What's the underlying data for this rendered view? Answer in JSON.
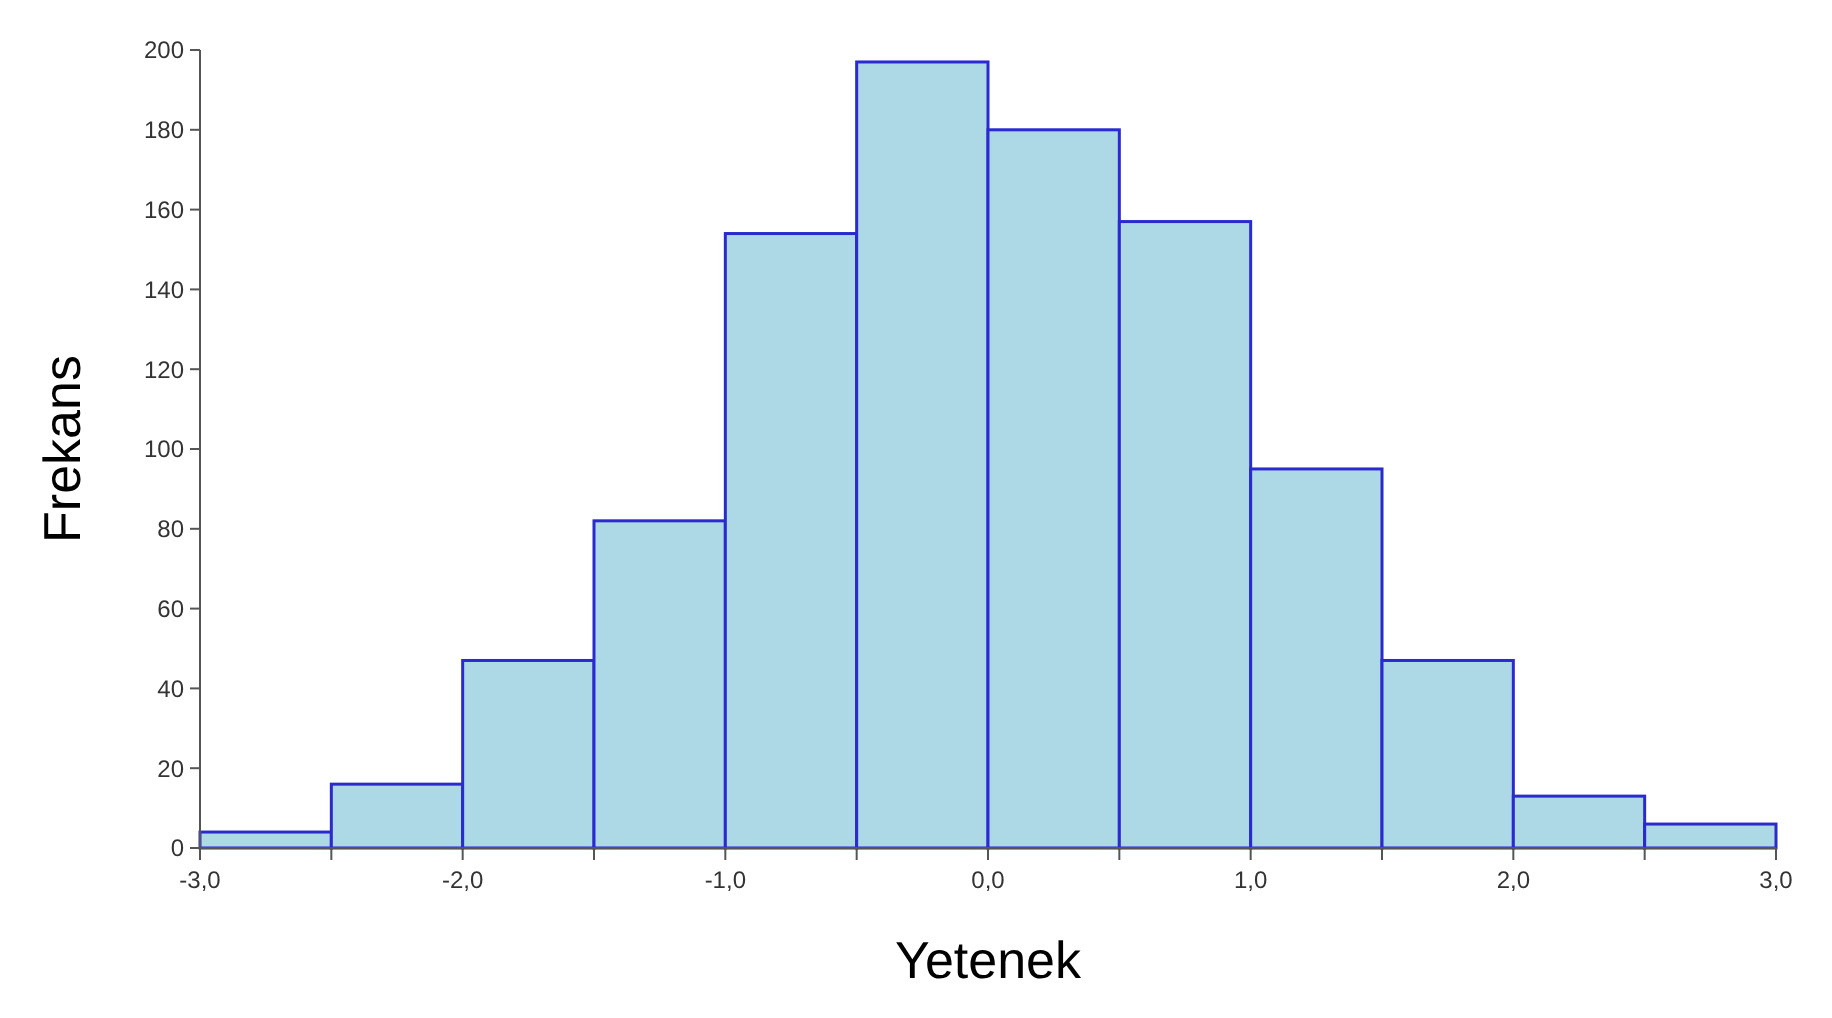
{
  "chart_data": {
    "type": "histogram",
    "xlabel": "Yetenek",
    "ylabel": "Frekans",
    "bins": [
      -3,
      -2.5,
      -2,
      -1.5,
      -1,
      -0.5,
      0,
      0.5,
      1,
      1.5,
      2,
      2.5,
      3
    ],
    "values": [
      4,
      16,
      47,
      82,
      154,
      197,
      180,
      157,
      95,
      47,
      13,
      6
    ],
    "color": "#add8e6",
    "xlim": [
      -3,
      3
    ],
    "xticks": [
      {
        "value": -3,
        "label": "-3,0"
      },
      {
        "value": -2.5,
        "label": null
      },
      {
        "value": -2,
        "label": "-2,0"
      },
      {
        "value": -1.5,
        "label": null
      },
      {
        "value": -1,
        "label": "-1,0"
      },
      {
        "value": -0.5,
        "label": null
      },
      {
        "value": 0,
        "label": "0,0"
      },
      {
        "value": 0.5,
        "label": null
      },
      {
        "value": 1,
        "label": "1,0"
      },
      {
        "value": 1.5,
        "label": null
      },
      {
        "value": 2,
        "label": "2,0"
      },
      {
        "value": 2.5,
        "label": null
      },
      {
        "value": 3,
        "label": "3,0"
      }
    ],
    "ylim": [
      0,
      200
    ],
    "yticks": [
      0,
      20,
      40,
      60,
      80,
      100,
      120,
      140,
      160,
      180,
      200
    ]
  }
}
